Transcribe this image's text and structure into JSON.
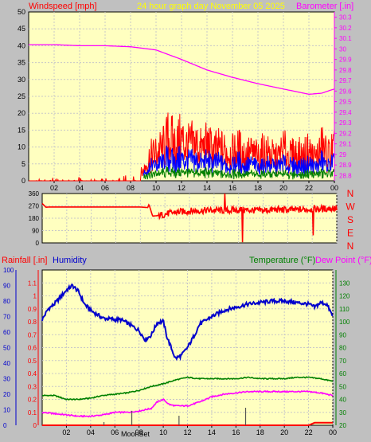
{
  "header": {
    "windspeed_label": "Windspeed [mph]",
    "title": "24 hour graph day   November 05 2025",
    "barometer_label": "Barometer [.in]"
  },
  "mid_header": {
    "rainfall_label": "Rainfall [.in]",
    "humidity_label": "Humidity",
    "temperature_label": "Temperature (°F)",
    "dewpoint_label": "Dew Point (°F)"
  },
  "bottom_annotations": {
    "moonset_label": "MoonSet"
  },
  "colors": {
    "background": "#c0c0c0",
    "plot_bg": "#ffffc0",
    "windspeed": "#ff0000",
    "wind_avg": "#0000ff",
    "wind_min": "#008000",
    "barometer": "#ff00ff",
    "humidity": "#0000cc",
    "temperature": "#008000",
    "dewpoint": "#ff00ff",
    "rainfall": "#ff0000",
    "title": "#ffff00"
  },
  "chart_data": [
    {
      "id": "wind",
      "type": "line",
      "title": "24 hour graph day   November 05 2025",
      "x_ticks": [
        "02",
        "04",
        "06",
        "08",
        "10",
        "12",
        "14",
        "16",
        "18",
        "20",
        "22",
        "00"
      ],
      "ylim": [
        0,
        50
      ],
      "y_ticks": [
        "0",
        "5",
        "10",
        "15",
        "20",
        "25",
        "30",
        "35",
        "40",
        "45",
        "50"
      ],
      "y2lim": [
        28.75,
        30.35
      ],
      "y2_ticks": [
        "28.8",
        "28.9",
        "29",
        "29.1",
        "29.2",
        "29.3",
        "29.4",
        "29.5",
        "29.6",
        "29.7",
        "29.8",
        "29.9",
        "30",
        "30.1",
        "30.2",
        "30.3"
      ],
      "xlabel": "",
      "ylabel": "Windspeed [mph]",
      "y2label": "Barometer [.in]",
      "grid": true,
      "series": [
        {
          "name": "Windspeed [mph]",
          "axis": "y",
          "x": [
            0,
            0.4,
            0.5,
            1,
            1.5,
            2,
            2.5,
            3,
            3.5,
            4,
            4.5,
            5,
            5.5,
            6,
            6.5,
            7,
            7.5,
            8,
            8.5,
            9,
            9.5,
            10,
            10.5,
            11,
            11.5,
            12,
            12.5,
            13,
            13.5,
            14,
            14.5,
            15,
            15.5,
            16,
            16.5,
            17,
            17.5,
            18,
            18.5,
            19,
            19.5,
            20,
            20.5,
            21,
            21.5,
            22,
            22.5,
            23,
            23.5,
            24
          ],
          "values": [
            0,
            3,
            0,
            1,
            0,
            1,
            0,
            1,
            0,
            1,
            0,
            1,
            0,
            1,
            0,
            1,
            2,
            1,
            2,
            5,
            12,
            14,
            16,
            22,
            18,
            21,
            17,
            19,
            16,
            18,
            15,
            16,
            15,
            14,
            16,
            13,
            14,
            12,
            15,
            13,
            11,
            16,
            12,
            14,
            12,
            15,
            11,
            17,
            13,
            16
          ]
        },
        {
          "name": "Barometer [.in]",
          "axis": "y2",
          "x": [
            0,
            2,
            4,
            6,
            8,
            10,
            12,
            14,
            16,
            18,
            20,
            22,
            23,
            24
          ],
          "values": [
            30.04,
            30.04,
            30.03,
            30.03,
            30.02,
            29.99,
            29.9,
            29.8,
            29.73,
            29.67,
            29.62,
            29.57,
            29.58,
            29.62
          ]
        }
      ]
    },
    {
      "id": "direction",
      "type": "line",
      "x_ticks": [
        "02",
        "04",
        "06",
        "08",
        "10",
        "12",
        "14",
        "16",
        "18",
        "20",
        "22",
        "00"
      ],
      "ylim": [
        0,
        360
      ],
      "y_ticks": [
        "0",
        "90",
        "180",
        "270",
        "360"
      ],
      "compass_labels": [
        "N",
        "W",
        "S",
        "E",
        "N"
      ],
      "grid": true,
      "series": [
        {
          "name": "Wind direction",
          "x": [
            0,
            0.3,
            0.6,
            7.6,
            7.9,
            8.6,
            8.7,
            9.0,
            9.5,
            10,
            11,
            12,
            13,
            14,
            15,
            16,
            17,
            18,
            19,
            20,
            21,
            22,
            23,
            24
          ],
          "values": [
            288,
            260,
            262,
            262,
            262,
            258,
            280,
            195,
            200,
            210,
            225,
            232,
            236,
            238,
            236,
            240,
            238,
            236,
            244,
            240,
            242,
            246,
            248,
            252
          ]
        }
      ]
    },
    {
      "id": "temp",
      "type": "line",
      "x_ticks": [
        "02",
        "04",
        "06",
        "08",
        "10",
        "12",
        "14",
        "16",
        "18",
        "20",
        "22",
        "00"
      ],
      "ylim": [
        0,
        100
      ],
      "y_ticks": [
        "0",
        "10",
        "20",
        "30",
        "40",
        "50",
        "60",
        "70",
        "80",
        "90",
        "100"
      ],
      "y_rain_lim": [
        0,
        1.2
      ],
      "y_rain_ticks": [
        "0",
        "0.1",
        "0.2",
        "0.3",
        "0.4",
        "0.5",
        "0.6",
        "0.7",
        "0.8",
        "0.9",
        "1",
        "1.1"
      ],
      "y2lim": [
        20,
        140
      ],
      "y2_ticks": [
        "20",
        "30",
        "40",
        "50",
        "60",
        "70",
        "80",
        "90",
        "100",
        "110",
        "120",
        "130"
      ],
      "grid": true,
      "series": [
        {
          "name": "Humidity",
          "axis": "y",
          "x": [
            0,
            0.5,
            1,
            2,
            2.5,
            3,
            3.5,
            4,
            5,
            6,
            6.5,
            7,
            8,
            8.5,
            9,
            9.5,
            10,
            10.3,
            11,
            11.5,
            12,
            12.5,
            13,
            14,
            15,
            16,
            17,
            18,
            19,
            20,
            21,
            22,
            22.5,
            23,
            23.5,
            24
          ],
          "values": [
            68,
            75,
            78,
            87,
            90,
            86,
            78,
            74,
            69,
            68,
            68,
            66,
            61,
            55,
            58,
            66,
            67,
            57,
            43,
            45,
            50,
            57,
            65,
            70,
            74,
            76,
            78,
            79,
            80,
            80,
            79,
            78,
            76,
            79,
            78,
            70
          ]
        },
        {
          "name": "Temperature (°F)",
          "axis": "y2",
          "x": [
            0,
            1,
            2,
            3,
            4,
            5,
            6,
            7,
            8,
            9,
            10,
            11,
            12,
            13,
            14,
            15,
            16,
            17,
            18,
            19,
            20,
            21,
            22,
            23,
            24
          ],
          "values": [
            43,
            43,
            40,
            40,
            41,
            43,
            44,
            45,
            47,
            50,
            52,
            55,
            57,
            56,
            56,
            56,
            56,
            57,
            56,
            56,
            56,
            57,
            57,
            56,
            54
          ]
        },
        {
          "name": "Dew Point (°F)",
          "axis": "y2",
          "x": [
            0,
            1,
            2,
            3,
            4,
            5,
            6,
            7,
            8,
            9,
            9.5,
            10,
            10.5,
            11,
            12,
            13,
            14,
            15,
            16,
            17,
            18,
            19,
            20,
            21,
            22,
            23,
            24
          ],
          "values": [
            30,
            29,
            28,
            27,
            27,
            28,
            30,
            30,
            31,
            33,
            38,
            40,
            36,
            35,
            35,
            38,
            42,
            44,
            45,
            46,
            46,
            46,
            46,
            46,
            46,
            45,
            43
          ]
        },
        {
          "name": "Rainfall [.in]",
          "axis": "y_rain",
          "x": [
            0,
            22,
            22.5,
            24
          ],
          "values": [
            0,
            0,
            0.02,
            0.02
          ]
        }
      ]
    }
  ]
}
